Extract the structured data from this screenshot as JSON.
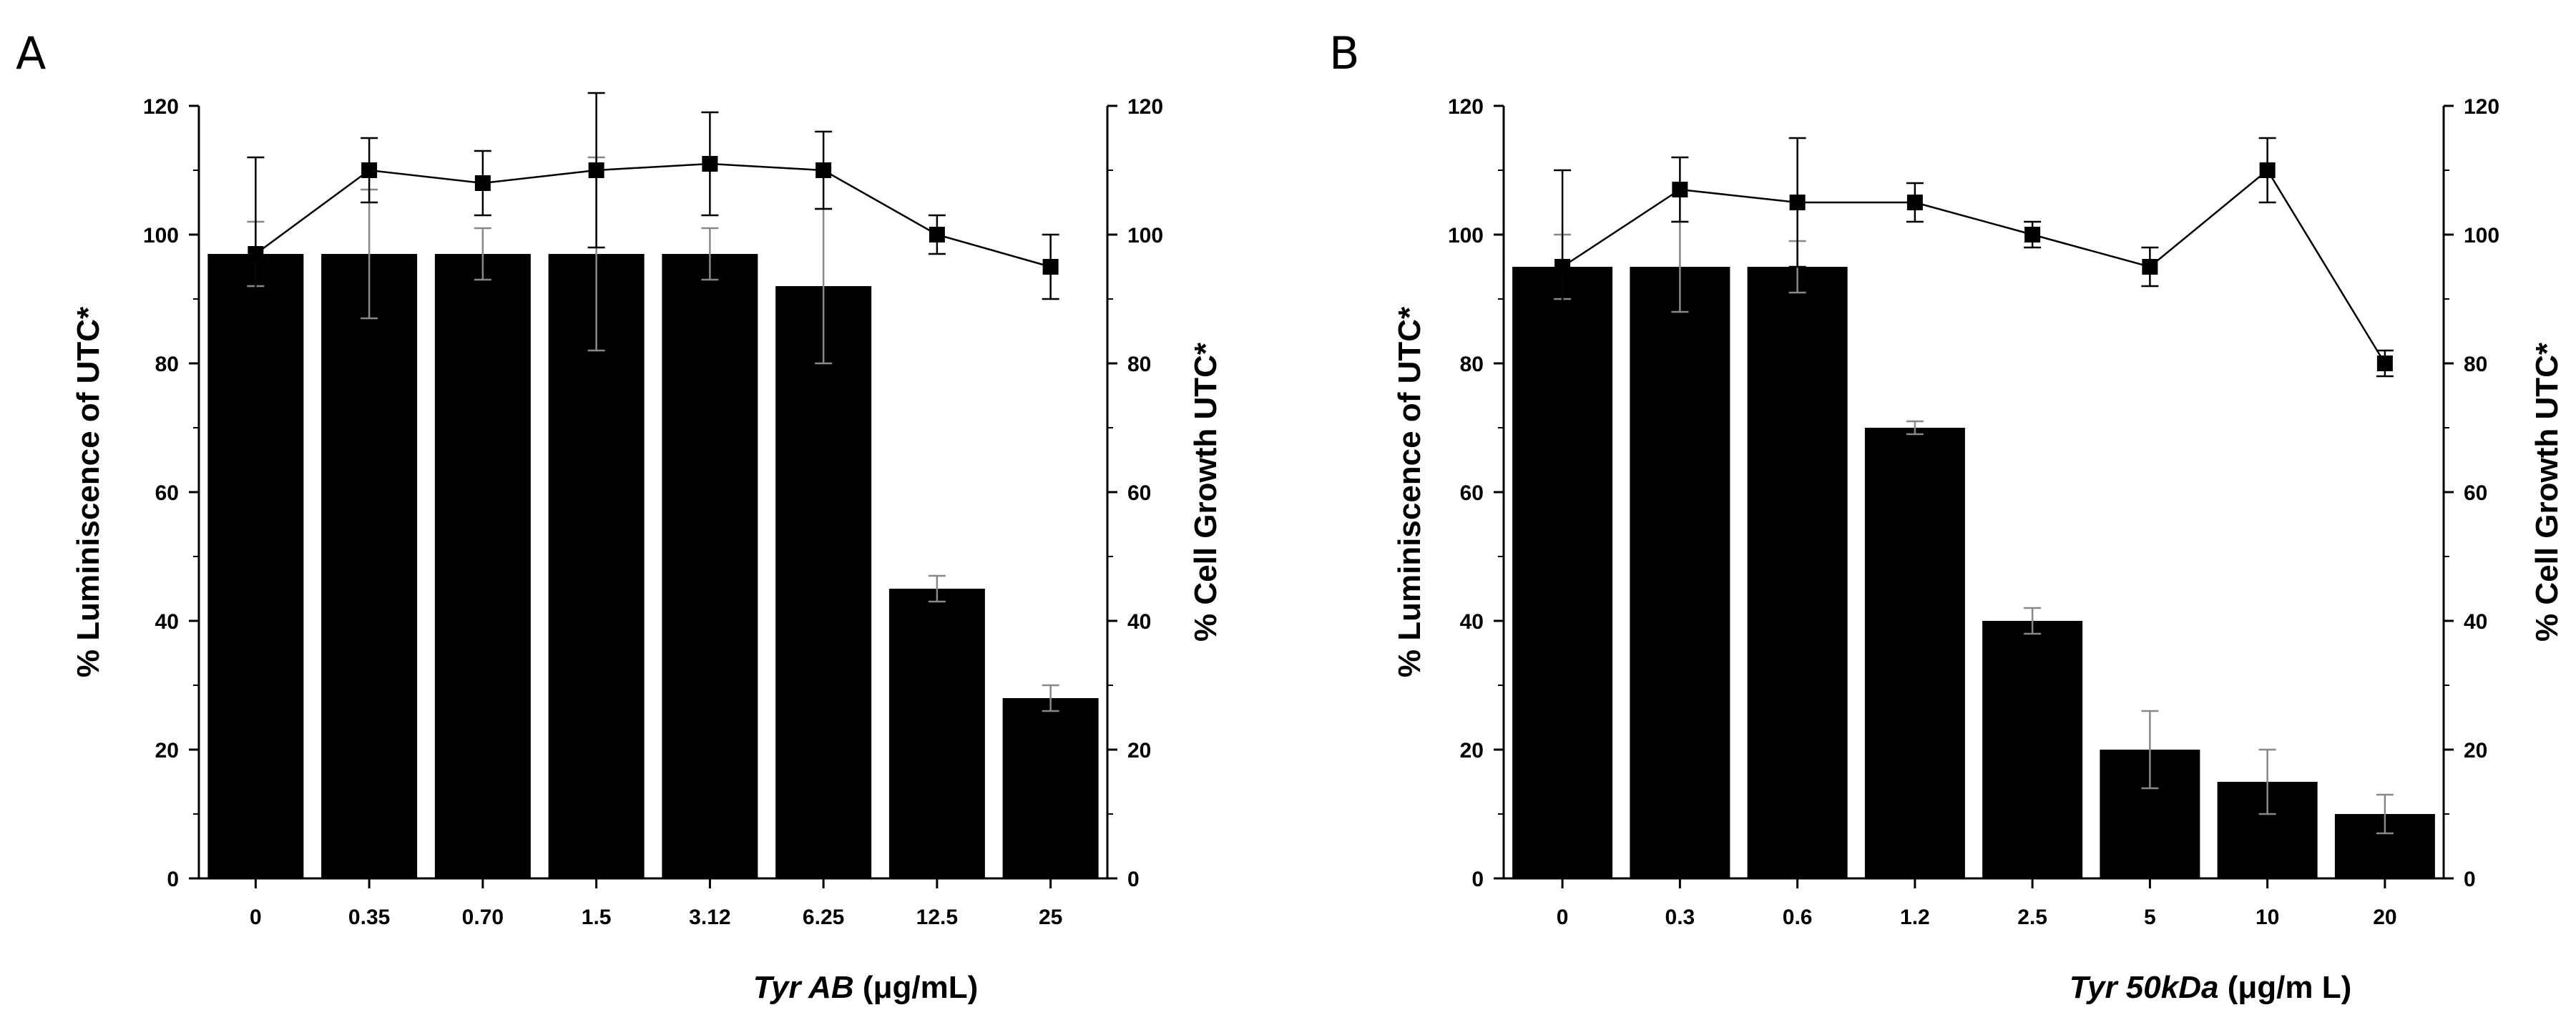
{
  "chart_data": [
    {
      "panel_label": "A",
      "type": "bar",
      "categories": [
        "0",
        "0.35",
        "0.70",
        "1.5",
        "3.12",
        "6.25",
        "12.5",
        "25"
      ],
      "series": [
        {
          "name": "% Luminiscence of UTC*",
          "kind": "bar",
          "axis": "left",
          "values": [
            97,
            97,
            97,
            97,
            97,
            92,
            45,
            28
          ],
          "error": [
            5,
            10,
            4,
            15,
            4,
            12,
            2,
            2
          ],
          "color": "#000000"
        },
        {
          "name": "% Cell Growth UTC*",
          "kind": "line",
          "axis": "right",
          "marker": "square",
          "values": [
            97,
            110,
            108,
            110,
            111,
            110,
            100,
            95
          ],
          "error": [
            15,
            5,
            5,
            12,
            8,
            6,
            3,
            5
          ],
          "color": "#000000"
        }
      ],
      "xlabel_italic": "Tyr AB",
      "xlabel_unit": " (μg/mL)",
      "ylabel_left": "% Luminiscence of UTC*",
      "ylabel_right": "% Cell Growth UTC*",
      "ylim": [
        0,
        120
      ],
      "yticks": [
        0,
        20,
        40,
        60,
        80,
        100,
        120
      ],
      "grid": false
    },
    {
      "panel_label": "B",
      "type": "bar",
      "categories": [
        "0",
        "0.3",
        "0.6",
        "1.2",
        "2.5",
        "5",
        "10",
        "20"
      ],
      "series": [
        {
          "name": "% Luminiscence of UTC*",
          "kind": "bar",
          "axis": "left",
          "values": [
            95,
            95,
            95,
            70,
            40,
            20,
            15,
            10
          ],
          "error": [
            5,
            7,
            4,
            1,
            2,
            6,
            5,
            3
          ],
          "color": "#000000"
        },
        {
          "name": "% Cell Growth UTC*",
          "kind": "line",
          "axis": "right",
          "marker": "square",
          "values": [
            95,
            107,
            105,
            105,
            100,
            95,
            110,
            80
          ],
          "error": [
            15,
            5,
            10,
            3,
            2,
            3,
            5,
            2
          ],
          "color": "#000000"
        }
      ],
      "xlabel_italic": "Tyr 50kDa",
      "xlabel_unit": " (μg/m L)",
      "ylabel_left": "% Luminiscence of UTC*",
      "ylabel_right": "% Cell Growth UTC*",
      "ylim": [
        0,
        120
      ],
      "yticks": [
        0,
        20,
        40,
        60,
        80,
        100,
        120
      ],
      "grid": false
    }
  ]
}
